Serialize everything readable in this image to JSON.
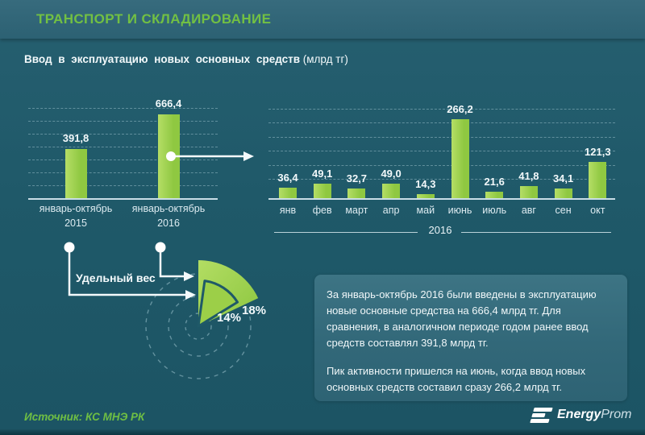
{
  "header": {
    "title": "ТРАНСПОРТ И СКЛАДИРОВАНИЕ"
  },
  "chart_title": {
    "main": "Ввод в эксплуатацию новых основных средств",
    "unit": " (млрд тг)"
  },
  "colors": {
    "accent_green": "#72c043",
    "bar_green": "#8fc841",
    "background_teal": "#1f5969",
    "header_teal": "#2f6577",
    "note_box_teal": "#35707f"
  },
  "chart_data": [
    {
      "type": "bar",
      "id": "ytd-comparison",
      "title": "Ввод в эксплуатацию новых основных средств",
      "unit": "млрд тг",
      "categories": [
        {
          "line1": "январь-октябрь",
          "line2": "2015"
        },
        {
          "line1": "январь-октябрь",
          "line2": "2016"
        }
      ],
      "values": [
        391.8,
        666.4
      ],
      "labels": [
        "391,8",
        "666,4"
      ],
      "ylim": [
        0,
        760
      ],
      "grid": true
    },
    {
      "type": "bar",
      "id": "monthly-2016",
      "categories": [
        "янв",
        "фев",
        "март",
        "апр",
        "май",
        "июнь",
        "июль",
        "авг",
        "сен",
        "окт"
      ],
      "values": [
        36.4,
        49.1,
        32.7,
        49.0,
        14.3,
        266.2,
        21.6,
        41.8,
        34.1,
        121.3
      ],
      "labels": [
        "36,4",
        "49,1",
        "32,7",
        "49,0",
        "14,3",
        "266,2",
        "21,6",
        "41,8",
        "34,1",
        "121,3"
      ],
      "group_label": "2016",
      "ylim": [
        0,
        320
      ],
      "grid": true
    },
    {
      "type": "pie",
      "id": "share-radial",
      "title": "Удельный вес",
      "slices": [
        {
          "label": "14%",
          "value": 14
        },
        {
          "label": "18%",
          "value": 18
        }
      ]
    }
  ],
  "annotation_box": {
    "p1": "За январь-октябрь 2016 были введены в эксплуатацию новые основные средства на 666,4 млрд тг. Для сравнения, в аналогичном периоде годом ранее ввод средств составлял 391,8 млрд тг.",
    "p2": "Пик активности пришелся на июнь, когда ввод новых основных средств составил сразу 266,2 млрд тг."
  },
  "footer": {
    "source": "Источник: КС МНЭ РК",
    "logo_bold": "Energy",
    "logo_light": "Prom"
  }
}
